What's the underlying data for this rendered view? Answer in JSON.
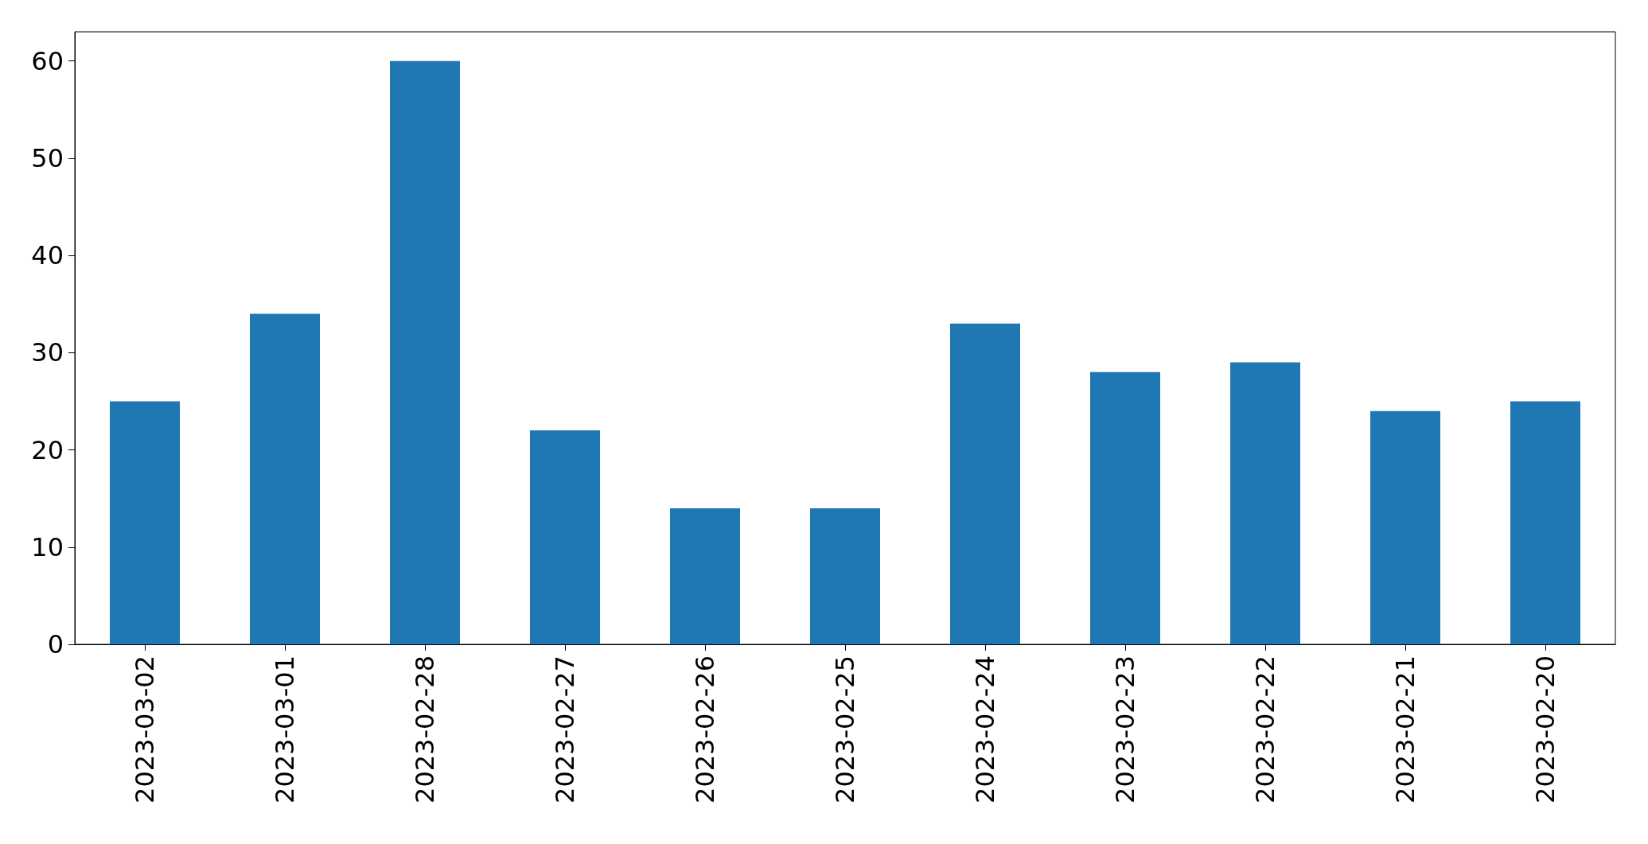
{
  "chart_data": {
    "type": "bar",
    "categories": [
      "2023-03-02",
      "2023-03-01",
      "2023-02-28",
      "2023-02-27",
      "2023-02-26",
      "2023-02-25",
      "2023-02-24",
      "2023-02-23",
      "2023-02-22",
      "2023-02-21",
      "2023-02-20"
    ],
    "values": [
      25,
      34,
      60,
      22,
      14,
      14,
      33,
      28,
      29,
      24,
      25
    ],
    "color": "#1f77b4",
    "ylim": [
      0,
      63
    ],
    "yticks": [
      0,
      10,
      20,
      30,
      40,
      50,
      60
    ],
    "grid": false
  }
}
